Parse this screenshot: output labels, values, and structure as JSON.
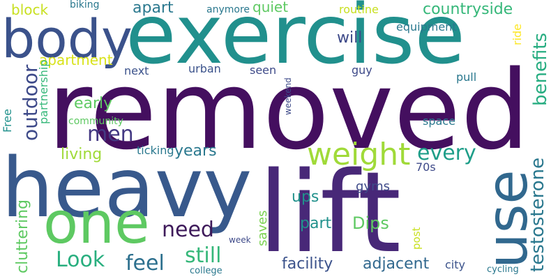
{
  "words": [
    {
      "text": "removed",
      "color": "#440f5f"
    },
    {
      "text": "exercise",
      "color": "#21908d"
    },
    {
      "text": "heavy",
      "color": "#38598c"
    },
    {
      "text": "lift",
      "color": "#482878"
    },
    {
      "text": "body",
      "color": "#3b528b"
    },
    {
      "text": "one",
      "color": "#5ec962"
    },
    {
      "text": "use",
      "color": "#31688e"
    },
    {
      "text": "weight",
      "color": "#a0da39"
    },
    {
      "text": "testosterone",
      "color": "#2a788e"
    },
    {
      "text": "benefits",
      "color": "#27ad81"
    },
    {
      "text": "outdoor",
      "color": "#3e4a89"
    },
    {
      "text": "men",
      "color": "#443983"
    },
    {
      "text": "every",
      "color": "#1f9e89"
    },
    {
      "text": "need",
      "color": "#3e1a5a"
    },
    {
      "text": "still",
      "color": "#35b779"
    },
    {
      "text": "feel",
      "color": "#2d708e"
    },
    {
      "text": "Look",
      "color": "#29af7f"
    },
    {
      "text": "facility",
      "color": "#3b528b"
    },
    {
      "text": "adjacent",
      "color": "#31688e"
    },
    {
      "text": "Dips",
      "color": "#5ec962"
    },
    {
      "text": "cluttering",
      "color": "#5ec962"
    },
    {
      "text": "part",
      "color": "#21918c"
    },
    {
      "text": "ups",
      "color": "#21918c"
    },
    {
      "text": "years",
      "color": "#2a788e"
    },
    {
      "text": "living",
      "color": "#a0da39"
    },
    {
      "text": "early",
      "color": "#5ec962"
    },
    {
      "text": "apart",
      "color": "#2a788e"
    },
    {
      "text": "quiet",
      "color": "#5ec962"
    },
    {
      "text": "countryside",
      "color": "#35b779"
    },
    {
      "text": "will",
      "color": "#3e4a89"
    },
    {
      "text": "apartment",
      "color": "#d8e219"
    },
    {
      "text": "block",
      "color": "#c8e020"
    },
    {
      "text": "gyms",
      "color": "#3e4a89"
    },
    {
      "text": "saves",
      "color": "#7ad151"
    },
    {
      "text": "post",
      "color": "#c8e020"
    },
    {
      "text": "city",
      "color": "#3b528b"
    },
    {
      "text": "cycling",
      "color": "#2a788e"
    },
    {
      "text": "college",
      "color": "#2a788e"
    },
    {
      "text": "week",
      "color": "#3e4a89"
    },
    {
      "text": "ticking",
      "color": "#2a788e"
    },
    {
      "text": "70s",
      "color": "#3e4a89"
    },
    {
      "text": "community",
      "color": "#5ec962"
    },
    {
      "text": "partnership",
      "color": "#35b779"
    },
    {
      "text": "Free",
      "color": "#21918c"
    },
    {
      "text": "weekend",
      "color": "#3e4a89"
    },
    {
      "text": "space",
      "color": "#2a788e"
    },
    {
      "text": "pull",
      "color": "#2a788e"
    },
    {
      "text": "guy",
      "color": "#3e4a89"
    },
    {
      "text": "seen",
      "color": "#3e4a89"
    },
    {
      "text": "urban",
      "color": "#3b528b"
    },
    {
      "text": "next",
      "color": "#3b528b"
    },
    {
      "text": "equipment",
      "color": "#2a788e"
    },
    {
      "text": "ride",
      "color": "#fde725"
    },
    {
      "text": "routine",
      "color": "#c8e020"
    },
    {
      "text": "anymore",
      "color": "#2a788e"
    },
    {
      "text": "biking",
      "color": "#2a788e"
    }
  ]
}
